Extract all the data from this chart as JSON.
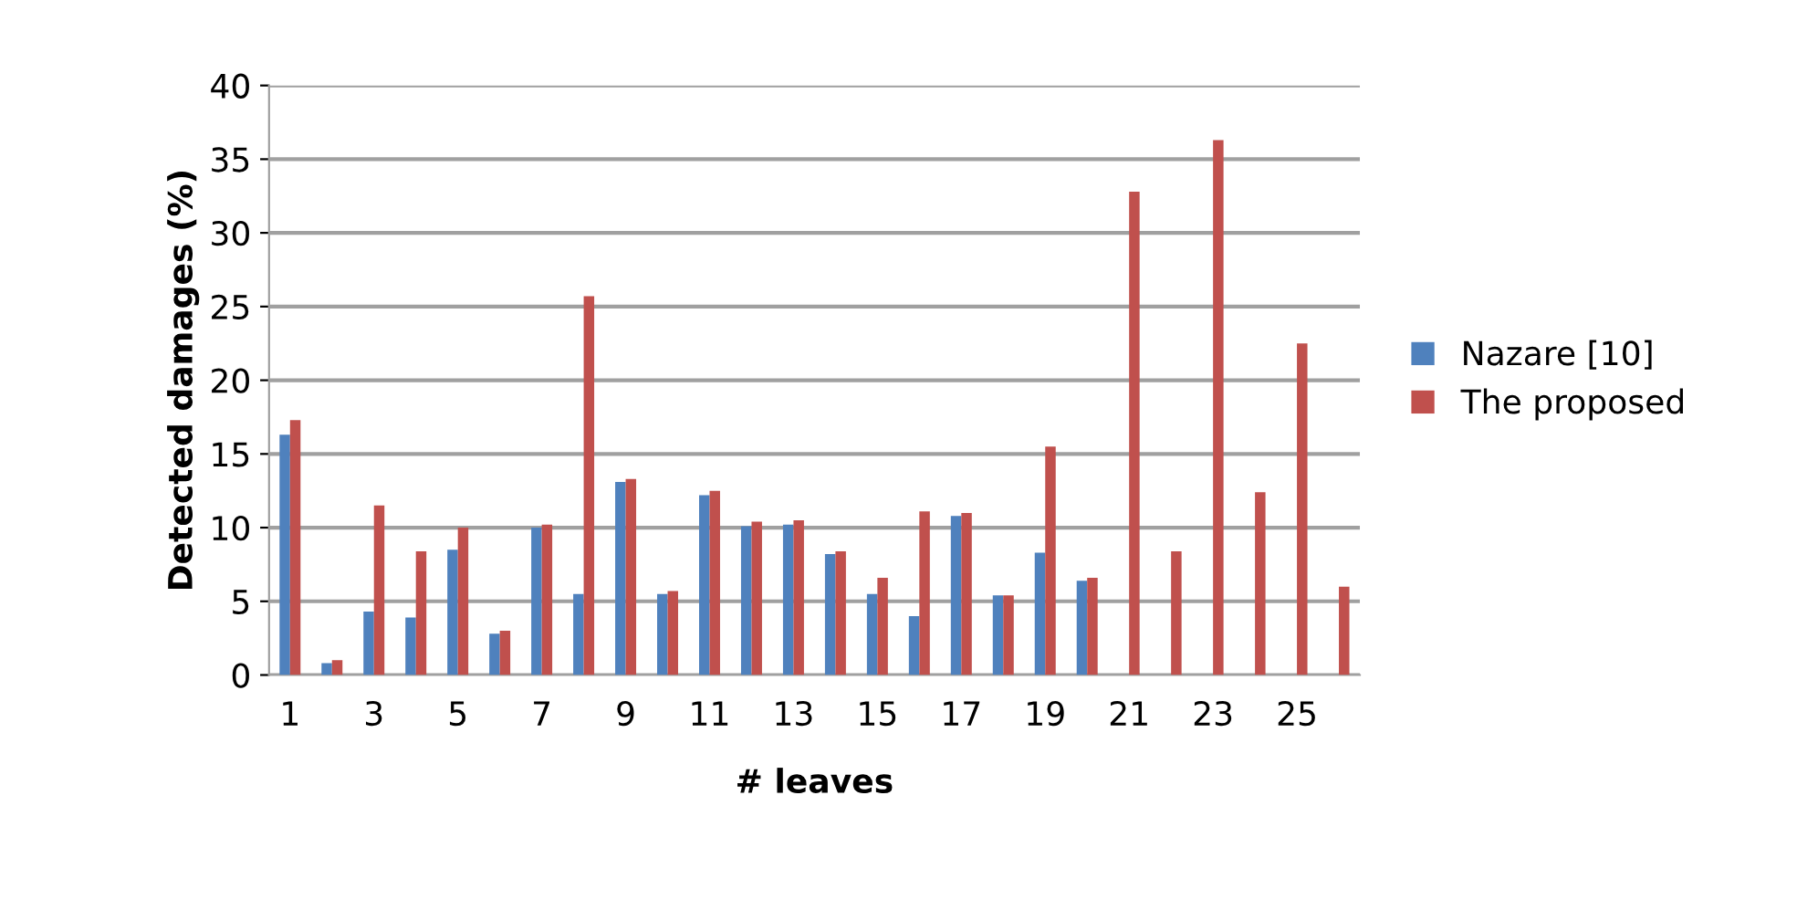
{
  "chart_data": {
    "type": "bar",
    "xlabel": "# leaves",
    "ylabel": "Detected damages (%)",
    "categories": [
      "1",
      null,
      "3",
      null,
      "5",
      null,
      "7",
      null,
      "9",
      null,
      "11",
      null,
      "13",
      null,
      "15",
      null,
      "17",
      null,
      "19",
      null,
      "21",
      null,
      "23",
      null,
      "25",
      null
    ],
    "series": [
      {
        "name": "Nazare [10]",
        "color": "#4f81bd",
        "values": [
          16.3,
          0.8,
          4.3,
          3.9,
          8.5,
          2.8,
          10.0,
          5.5,
          13.1,
          5.5,
          12.2,
          10.1,
          10.2,
          8.2,
          5.5,
          4.0,
          10.8,
          5.4,
          8.3,
          6.4,
          0,
          0,
          0,
          0,
          0,
          0
        ]
      },
      {
        "name": "The proposed",
        "color": "#c0504d",
        "values": [
          17.3,
          1.0,
          11.5,
          8.4,
          10.0,
          3.0,
          10.2,
          25.7,
          13.3,
          5.7,
          12.5,
          10.4,
          10.5,
          8.4,
          6.6,
          11.1,
          11.0,
          5.4,
          15.5,
          6.6,
          32.8,
          8.4,
          36.3,
          12.4,
          22.5,
          6.0
        ]
      }
    ],
    "ylim": [
      0,
      40
    ],
    "yticks": [
      0,
      5,
      10,
      15,
      20,
      25,
      30,
      35,
      40
    ],
    "grid": "y",
    "legend": "right"
  }
}
